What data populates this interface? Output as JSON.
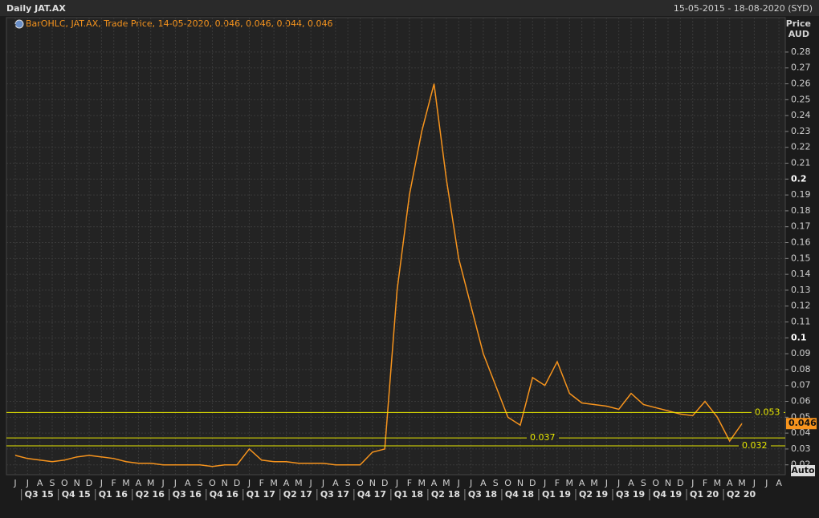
{
  "chart_data": {
    "type": "line",
    "title": "Daily JAT.AX",
    "date_range": "15-05-2015 - 18-08-2020 (SYD)",
    "legend_text": "BarOHLC, JAT.AX, Trade Price, 14-05-2020, 0.046, 0.046, 0.044, 0.046",
    "y_axis_label": "Price",
    "y_axis_unit": "AUD",
    "auto_button": "Auto",
    "categories": [
      "J",
      "J",
      "A",
      "S",
      "O",
      "N",
      "D",
      "J",
      "F",
      "M",
      "A",
      "M",
      "J",
      "J",
      "A",
      "S",
      "O",
      "N",
      "D",
      "J",
      "F",
      "M",
      "A",
      "M",
      "J",
      "J",
      "A",
      "S",
      "O",
      "N",
      "D",
      "J",
      "F",
      "M",
      "A",
      "M",
      "J",
      "J",
      "A",
      "S",
      "O",
      "N",
      "D",
      "J",
      "F",
      "M",
      "A",
      "M",
      "J",
      "J",
      "A",
      "S",
      "O",
      "N",
      "D",
      "J",
      "F",
      "M",
      "A",
      "M",
      "J",
      "J",
      "A"
    ],
    "quarters": [
      "Q3 15",
      "Q4 15",
      "Q1 16",
      "Q2 16",
      "Q3 16",
      "Q4 16",
      "Q1 17",
      "Q2 17",
      "Q3 17",
      "Q4 17",
      "Q1 18",
      "Q2 18",
      "Q3 18",
      "Q4 18",
      "Q1 19",
      "Q2 19",
      "Q3 19",
      "Q4 19",
      "Q1 20",
      "Q2 20"
    ],
    "series": [
      {
        "name": "JAT.AX",
        "color": "#f7941d",
        "values": [
          0.026,
          0.024,
          0.023,
          0.022,
          0.023,
          0.025,
          0.026,
          0.025,
          0.024,
          0.022,
          0.021,
          0.021,
          0.02,
          0.02,
          0.02,
          0.02,
          0.019,
          0.02,
          0.02,
          0.03,
          0.023,
          0.022,
          0.022,
          0.021,
          0.021,
          0.021,
          0.02,
          0.02,
          0.02,
          0.028,
          0.03,
          0.13,
          0.19,
          0.23,
          0.26,
          0.2,
          0.15,
          0.12,
          0.09,
          0.07,
          0.05,
          0.045,
          0.075,
          0.07,
          0.085,
          0.065,
          0.059,
          0.058,
          0.057,
          0.055,
          0.065,
          0.058,
          0.056,
          0.054,
          0.052,
          0.051,
          0.06,
          0.05,
          0.035,
          0.046,
          null,
          null,
          null
        ]
      }
    ],
    "levels": [
      0.053,
      0.037,
      0.032
    ],
    "level_color": "#e8e800",
    "last_price": 0.046,
    "ylim": [
      0.0138,
      0.2936
    ],
    "yticks": [
      0.02,
      0.03,
      0.04,
      0.05,
      0.06,
      0.07,
      0.08,
      0.09,
      0.1,
      0.11,
      0.12,
      0.13,
      0.14,
      0.15,
      0.16,
      0.17,
      0.18,
      0.19,
      0.2,
      0.21,
      0.22,
      0.23,
      0.24,
      0.25,
      0.26,
      0.27,
      0.28
    ],
    "grid": true
  }
}
